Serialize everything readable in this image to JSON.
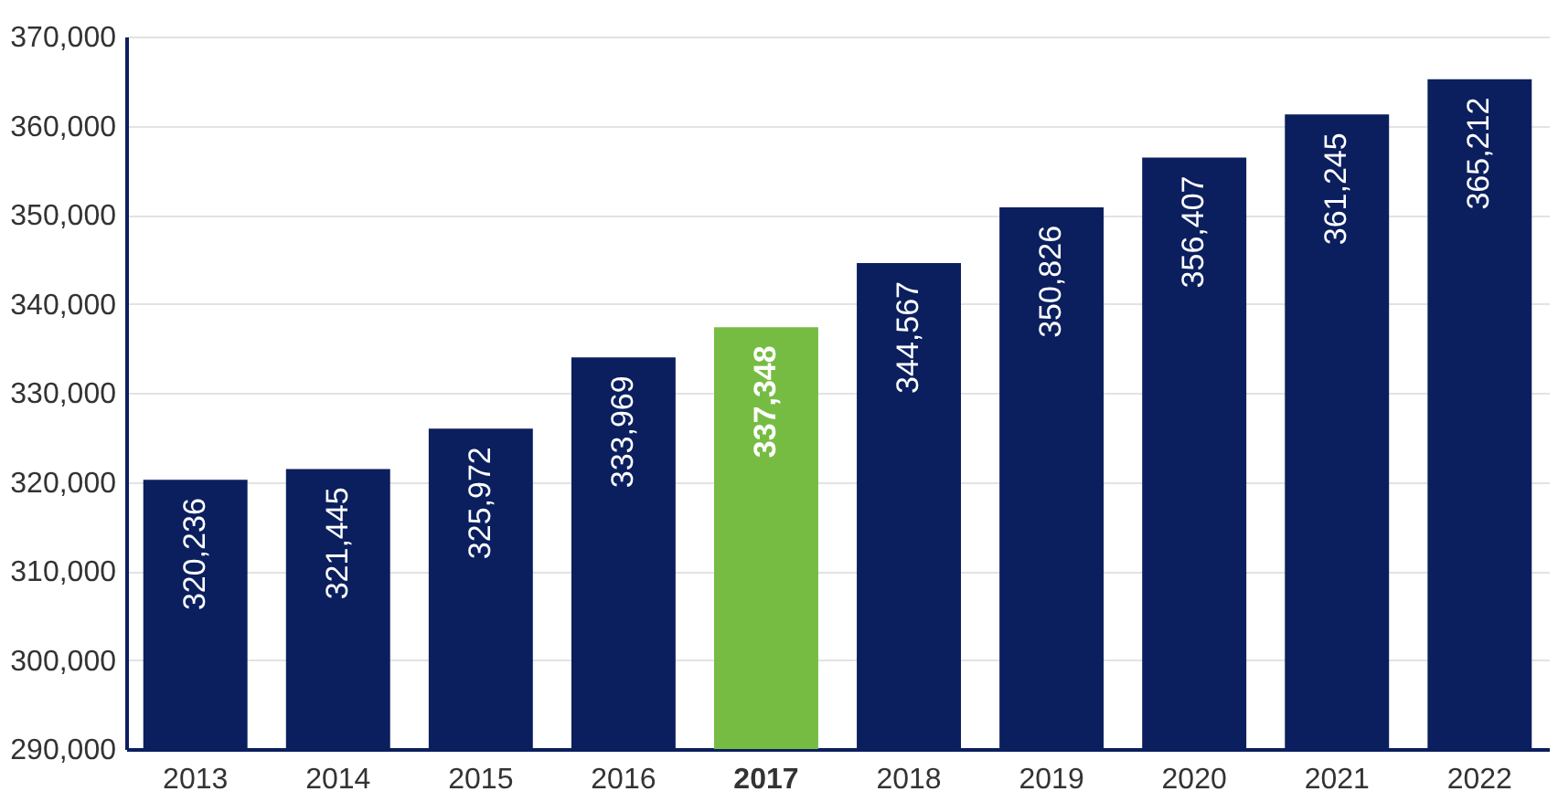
{
  "chart_data": {
    "type": "bar",
    "categories": [
      "2013",
      "2014",
      "2015",
      "2016",
      "2017",
      "2018",
      "2019",
      "2020",
      "2021",
      "2022"
    ],
    "values": [
      320236,
      321445,
      325972,
      333969,
      337348,
      344567,
      350826,
      356407,
      361245,
      365212
    ],
    "value_labels": [
      "320,236",
      "321,445",
      "325,972",
      "333,969",
      "337,348",
      "344,567",
      "350,826",
      "356,407",
      "361,245",
      "365,212"
    ],
    "colors": [
      "#0b1f5e",
      "#0b1f5e",
      "#0b1f5e",
      "#0b1f5e",
      "#76bc43",
      "#0b1f5e",
      "#0b1f5e",
      "#0b1f5e",
      "#0b1f5e",
      "#0b1f5e"
    ],
    "ylim": [
      290000,
      370000
    ],
    "yticks": [
      {
        "value": 290000,
        "label": "290,000"
      },
      {
        "value": 300000,
        "label": "300,000"
      },
      {
        "value": 310000,
        "label": "310,000"
      },
      {
        "value": 320000,
        "label": "320,000"
      },
      {
        "value": 330000,
        "label": "330,000"
      },
      {
        "value": 340000,
        "label": "340,000"
      },
      {
        "value": 350000,
        "label": "350,000"
      },
      {
        "value": 360000,
        "label": "360,000"
      },
      {
        "value": 370000,
        "label": "370,000"
      }
    ],
    "grid": "y"
  }
}
